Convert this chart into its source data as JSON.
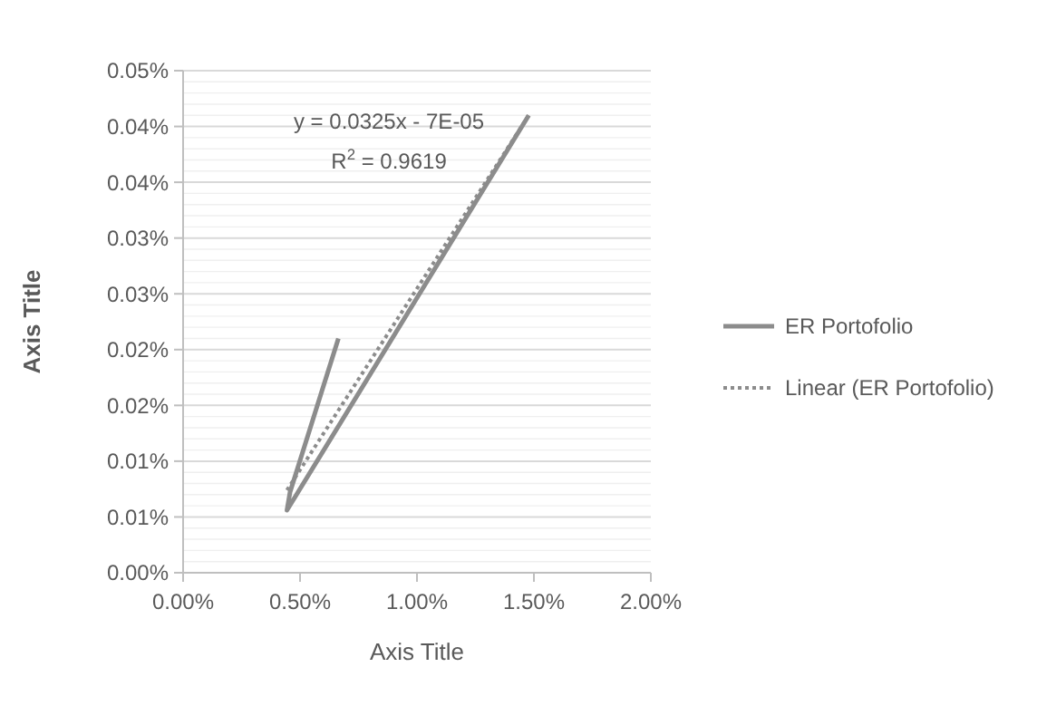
{
  "chart_data": {
    "type": "line",
    "xlabel": "Axis Title",
    "ylabel": "Axis Title",
    "xlim": [
      0,
      2
    ],
    "xticks": [
      {
        "value": 0,
        "label": "0.00%"
      },
      {
        "value": 0.5,
        "label": "0.50%"
      },
      {
        "value": 1,
        "label": "1.00%"
      },
      {
        "value": 1.5,
        "label": "1.50%"
      },
      {
        "value": 2,
        "label": "2.00%"
      }
    ],
    "ylim": [
      0,
      0.045
    ],
    "yticks": [
      {
        "value": 0,
        "label": "0.00%"
      },
      {
        "value": 0.005,
        "label": "0.01%"
      },
      {
        "value": 0.01,
        "label": "0.01%"
      },
      {
        "value": 0.015,
        "label": "0.02%"
      },
      {
        "value": 0.02,
        "label": "0.02%"
      },
      {
        "value": 0.025,
        "label": "0.03%"
      },
      {
        "value": 0.03,
        "label": "0.03%"
      },
      {
        "value": 0.035,
        "label": "0.04%"
      },
      {
        "value": 0.04,
        "label": "0.04%"
      },
      {
        "value": 0.045,
        "label": "0.05%"
      }
    ],
    "series": [
      {
        "name": "ER Portofolio",
        "color": "#8c8c8c",
        "x": [
          0.664,
          0.457,
          0.444,
          1.478
        ],
        "values": [
          0.021,
          0.0072,
          0.0056,
          0.041
        ],
        "line_style": "solid"
      },
      {
        "name": "Linear (ER Portofolio)",
        "color": "#8c8c8c",
        "x": [
          0.444,
          1.478
        ],
        "values": [
          0.0074,
          0.041
        ],
        "line_style": "dotted"
      }
    ],
    "annotations": [
      "y = 0.0325x - 7E-05",
      "R$^{2}$ = 0.9619"
    ],
    "grid": "y",
    "legend": "right",
    "marker": "none"
  }
}
